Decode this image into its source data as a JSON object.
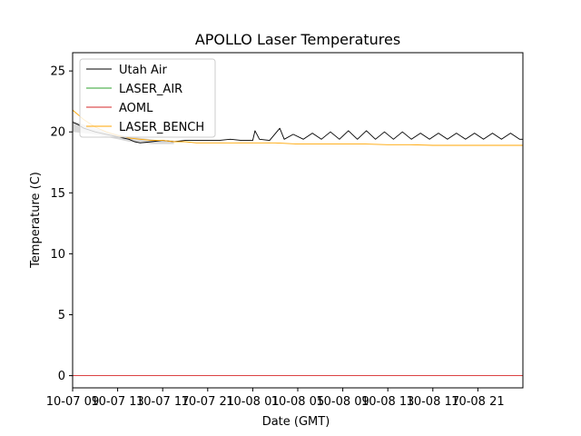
{
  "chart_data": {
    "type": "line",
    "title": "APOLLO Laser Temperatures",
    "xlabel": "Date (GMT)",
    "ylabel": "Temperature (C)",
    "xlim": [
      0,
      40
    ],
    "ylim": [
      -1,
      26.5
    ],
    "x_unit": "hours since 10-07 08:00 GMT",
    "y_ticks": [
      0,
      5,
      10,
      15,
      20,
      25
    ],
    "x_ticks": [
      {
        "value": 0,
        "label": "10-07 09"
      },
      {
        "value": 4,
        "label": "10-07 13"
      },
      {
        "value": 8,
        "label": "10-07 17"
      },
      {
        "value": 12,
        "label": "10-07 21"
      },
      {
        "value": 16,
        "label": "10-08 01"
      },
      {
        "value": 20,
        "label": "10-08 05"
      },
      {
        "value": 24,
        "label": "10-08 09"
      },
      {
        "value": 28,
        "label": "10-08 13"
      },
      {
        "value": 32,
        "label": "10-08 17"
      },
      {
        "value": 36,
        "label": "10-08 21"
      }
    ],
    "legend_position": "top-left",
    "series": [
      {
        "name": "Utah Air",
        "color": "#000000",
        "x": [
          0,
          0.5,
          1,
          2,
          3,
          4,
          5,
          5.5,
          6,
          7,
          8,
          9,
          10,
          11,
          12,
          13,
          14,
          15,
          16,
          16.2,
          16.6,
          17.5,
          18.4,
          18.8,
          19.6,
          20.5,
          21.3,
          22.1,
          22.9,
          23.7,
          24.5,
          25.3,
          26.1,
          26.9,
          27.7,
          28.5,
          29.3,
          30.1,
          30.9,
          31.7,
          32.5,
          33.3,
          34.1,
          34.9,
          35.7,
          36.5,
          37.3,
          38.1,
          38.9,
          39.7,
          40
        ],
        "y": [
          20.8,
          20.6,
          20.3,
          20.0,
          19.8,
          19.6,
          19.4,
          19.2,
          19.1,
          19.2,
          19.3,
          19.2,
          19.3,
          19.3,
          19.3,
          19.3,
          19.4,
          19.3,
          19.3,
          20.1,
          19.4,
          19.3,
          20.3,
          19.4,
          19.8,
          19.4,
          19.9,
          19.4,
          20.0,
          19.4,
          20.1,
          19.4,
          20.1,
          19.4,
          20.0,
          19.4,
          20.0,
          19.4,
          19.9,
          19.4,
          19.9,
          19.4,
          19.9,
          19.4,
          19.9,
          19.4,
          19.9,
          19.4,
          19.9,
          19.4,
          19.4
        ]
      },
      {
        "name": "LASER_AIR",
        "color": "#2ca02c",
        "x": [],
        "y": []
      },
      {
        "name": "AOML",
        "color": "#d62728",
        "x": [
          0,
          40
        ],
        "y": [
          0,
          0
        ]
      },
      {
        "name": "LASER_BENCH",
        "color": "#ffa500",
        "x": [
          0,
          1,
          2,
          3,
          4,
          5,
          6,
          7,
          8,
          9,
          10,
          11,
          12,
          14,
          16,
          18,
          20,
          22,
          24,
          26,
          28,
          30,
          32,
          34,
          36,
          38,
          40
        ],
        "y": [
          21.8,
          21.0,
          20.4,
          20.0,
          19.7,
          19.5,
          19.4,
          19.3,
          19.3,
          19.2,
          19.2,
          19.1,
          19.1,
          19.1,
          19.1,
          19.1,
          19.0,
          19.0,
          19.0,
          19.0,
          18.95,
          18.95,
          18.9,
          18.9,
          18.9,
          18.9,
          18.9
        ]
      }
    ],
    "bands": [
      {
        "name": "Utah Air spread (early)",
        "color": "#c8c8c8",
        "x": [
          0,
          1,
          2,
          3,
          4,
          5,
          6,
          7,
          8,
          9
        ],
        "y_high": [
          20.9,
          20.6,
          20.3,
          20.0,
          19.8,
          19.6,
          19.5,
          19.4,
          19.3,
          19.3
        ],
        "y_low": [
          20.0,
          19.9,
          19.8,
          19.6,
          19.4,
          19.2,
          19.1,
          19.0,
          19.0,
          19.0
        ]
      }
    ]
  }
}
